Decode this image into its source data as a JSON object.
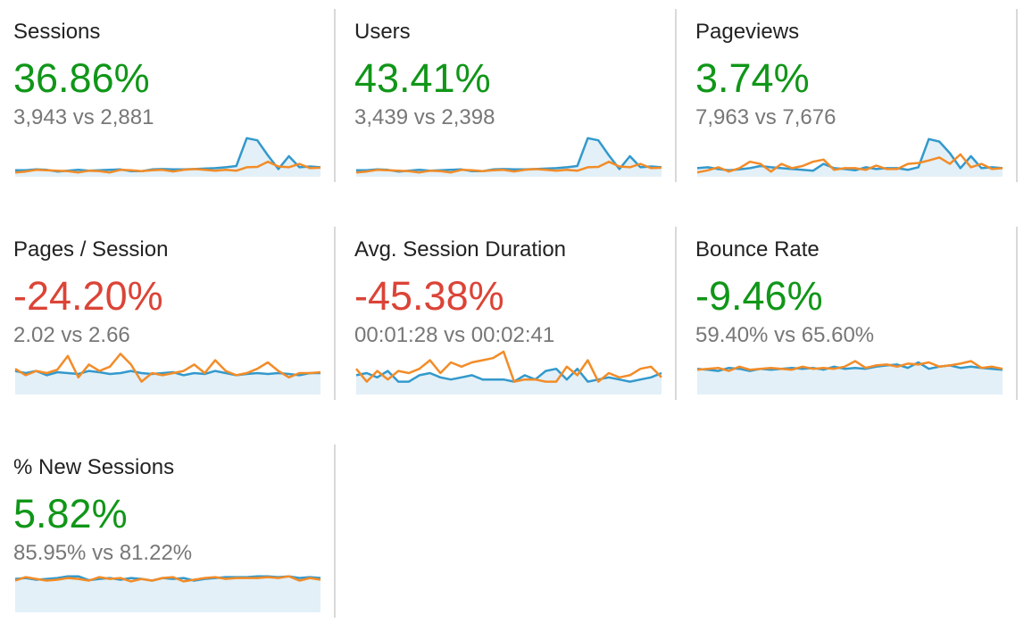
{
  "colors": {
    "positive": "#109618",
    "negative": "#db4437",
    "current_series": "#3399cc",
    "previous_series": "#f28c28",
    "area_fill": "#e3f0f8"
  },
  "metrics": [
    {
      "title": "Sessions",
      "change": "36.86%",
      "trend": "positive",
      "compare": "3,943 vs 2,881",
      "sparkline": {
        "current": [
          0.15,
          0.15,
          0.17,
          0.16,
          0.12,
          0.14,
          0.16,
          0.14,
          0.15,
          0.16,
          0.17,
          0.13,
          0.13,
          0.17,
          0.18,
          0.17,
          0.17,
          0.18,
          0.19,
          0.2,
          0.22,
          0.25,
          0.9,
          0.85,
          0.5,
          0.18,
          0.48,
          0.22,
          0.24,
          0.22
        ],
        "previous": [
          0.1,
          0.12,
          0.16,
          0.15,
          0.14,
          0.13,
          0.1,
          0.14,
          0.13,
          0.1,
          0.16,
          0.15,
          0.13,
          0.15,
          0.16,
          0.12,
          0.16,
          0.18,
          0.16,
          0.14,
          0.16,
          0.14,
          0.22,
          0.23,
          0.35,
          0.24,
          0.22,
          0.3,
          0.2,
          0.21
        ]
      }
    },
    {
      "title": "Users",
      "change": "43.41%",
      "trend": "positive",
      "compare": "3,439 vs 2,398",
      "sparkline": {
        "current": [
          0.15,
          0.15,
          0.17,
          0.16,
          0.12,
          0.14,
          0.16,
          0.14,
          0.15,
          0.16,
          0.17,
          0.13,
          0.13,
          0.17,
          0.18,
          0.17,
          0.17,
          0.18,
          0.19,
          0.2,
          0.22,
          0.25,
          0.9,
          0.85,
          0.5,
          0.18,
          0.48,
          0.22,
          0.24,
          0.22
        ],
        "previous": [
          0.1,
          0.12,
          0.16,
          0.15,
          0.14,
          0.13,
          0.1,
          0.14,
          0.13,
          0.1,
          0.16,
          0.15,
          0.13,
          0.15,
          0.16,
          0.12,
          0.16,
          0.18,
          0.16,
          0.14,
          0.16,
          0.14,
          0.22,
          0.23,
          0.35,
          0.24,
          0.22,
          0.3,
          0.2,
          0.21
        ]
      }
    },
    {
      "title": "Pageviews",
      "change": "3.74%",
      "trend": "positive",
      "compare": "7,963 vs 7,676",
      "sparkline": {
        "current": [
          0.2,
          0.22,
          0.18,
          0.15,
          0.17,
          0.2,
          0.25,
          0.22,
          0.2,
          0.18,
          0.16,
          0.14,
          0.3,
          0.2,
          0.18,
          0.15,
          0.22,
          0.18,
          0.2,
          0.2,
          0.16,
          0.22,
          0.88,
          0.82,
          0.55,
          0.2,
          0.48,
          0.2,
          0.22,
          0.2
        ],
        "previous": [
          0.1,
          0.15,
          0.22,
          0.12,
          0.2,
          0.35,
          0.3,
          0.12,
          0.3,
          0.2,
          0.25,
          0.35,
          0.4,
          0.16,
          0.2,
          0.2,
          0.16,
          0.26,
          0.18,
          0.18,
          0.3,
          0.32,
          0.38,
          0.45,
          0.3,
          0.52,
          0.22,
          0.3,
          0.18,
          0.2
        ]
      }
    },
    {
      "title": "Pages / Session",
      "change": "-24.20%",
      "trend": "negative",
      "compare": "2.02 vs 2.66",
      "sparkline": {
        "current": [
          0.55,
          0.5,
          0.55,
          0.45,
          0.52,
          0.5,
          0.48,
          0.55,
          0.52,
          0.48,
          0.5,
          0.55,
          0.5,
          0.48,
          0.5,
          0.52,
          0.45,
          0.5,
          0.48,
          0.55,
          0.5,
          0.45,
          0.48,
          0.5,
          0.48,
          0.5,
          0.48,
          0.45,
          0.5,
          0.5
        ],
        "previous": [
          0.6,
          0.45,
          0.55,
          0.5,
          0.58,
          0.9,
          0.4,
          0.7,
          0.55,
          0.65,
          0.95,
          0.7,
          0.3,
          0.5,
          0.45,
          0.5,
          0.55,
          0.7,
          0.5,
          0.8,
          0.55,
          0.45,
          0.5,
          0.6,
          0.75,
          0.55,
          0.4,
          0.5,
          0.5,
          0.52
        ]
      }
    },
    {
      "title": "Avg. Session Duration",
      "change": "-45.38%",
      "trend": "negative",
      "compare": "00:01:28 vs 00:02:41",
      "sparkline": {
        "current": [
          0.45,
          0.5,
          0.4,
          0.55,
          0.3,
          0.3,
          0.45,
          0.5,
          0.4,
          0.35,
          0.4,
          0.45,
          0.35,
          0.35,
          0.35,
          0.3,
          0.45,
          0.35,
          0.55,
          0.6,
          0.35,
          0.6,
          0.3,
          0.35,
          0.4,
          0.35,
          0.3,
          0.35,
          0.4,
          0.5
        ],
        "previous": [
          0.6,
          0.3,
          0.55,
          0.35,
          0.55,
          0.5,
          0.6,
          0.8,
          0.5,
          0.75,
          0.65,
          0.75,
          0.8,
          0.85,
          1.0,
          0.3,
          0.35,
          0.35,
          0.3,
          0.3,
          0.65,
          0.45,
          0.8,
          0.3,
          0.5,
          0.4,
          0.45,
          0.6,
          0.65,
          0.4
        ]
      }
    },
    {
      "title": "Bounce Rate",
      "change": "-9.46%",
      "trend": "positive",
      "compare": "59.40% vs 65.60%",
      "sparkline": {
        "current": [
          0.6,
          0.58,
          0.55,
          0.62,
          0.6,
          0.55,
          0.6,
          0.58,
          0.6,
          0.62,
          0.6,
          0.62,
          0.58,
          0.65,
          0.6,
          0.62,
          0.6,
          0.65,
          0.68,
          0.7,
          0.62,
          0.75,
          0.6,
          0.65,
          0.68,
          0.62,
          0.65,
          0.62,
          0.6,
          0.58
        ],
        "previous": [
          0.58,
          0.6,
          0.62,
          0.55,
          0.65,
          0.58,
          0.6,
          0.62,
          0.6,
          0.58,
          0.65,
          0.6,
          0.62,
          0.6,
          0.65,
          0.78,
          0.62,
          0.68,
          0.7,
          0.65,
          0.72,
          0.7,
          0.75,
          0.65,
          0.68,
          0.72,
          0.78,
          0.62,
          0.65,
          0.6
        ]
      }
    },
    {
      "title": "% New Sessions",
      "change": "5.82%",
      "trend": "positive",
      "compare": "85.95% vs 81.22%",
      "sparkline": {
        "current": [
          0.78,
          0.8,
          0.76,
          0.78,
          0.8,
          0.84,
          0.84,
          0.75,
          0.78,
          0.8,
          0.76,
          0.8,
          0.78,
          0.74,
          0.8,
          0.78,
          0.8,
          0.74,
          0.78,
          0.8,
          0.82,
          0.82,
          0.82,
          0.84,
          0.84,
          0.82,
          0.84,
          0.8,
          0.82,
          0.8
        ],
        "previous": [
          0.74,
          0.82,
          0.78,
          0.74,
          0.76,
          0.8,
          0.78,
          0.74,
          0.82,
          0.78,
          0.8,
          0.72,
          0.78,
          0.74,
          0.8,
          0.82,
          0.72,
          0.76,
          0.8,
          0.82,
          0.78,
          0.8,
          0.8,
          0.8,
          0.82,
          0.8,
          0.84,
          0.74,
          0.8,
          0.76
        ]
      }
    }
  ]
}
